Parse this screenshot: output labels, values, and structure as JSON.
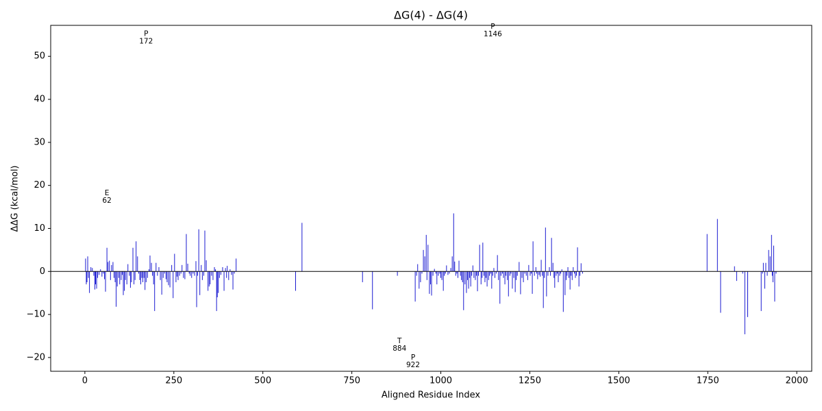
{
  "chart_data": {
    "type": "bar",
    "title": "ΔG(4) - ΔG(4)",
    "x_label": "Aligned Residue Index",
    "y_label": "ΔΔG (kcal/mol)",
    "color": "#0000cc",
    "zero_line": true,
    "grid": false,
    "xlim": [
      -96,
      2042
    ],
    "ylim": [
      -23.2,
      57.2
    ],
    "xticks": [
      0,
      250,
      500,
      750,
      1000,
      1250,
      1500,
      1750,
      2000
    ],
    "yticks": [
      {
        "value": -20,
        "label": "−20"
      },
      {
        "value": -10,
        "label": "−10"
      },
      0,
      10,
      20,
      30,
      40,
      50
    ],
    "x": [
      2,
      4,
      6,
      8,
      10,
      13,
      17,
      21,
      25,
      28,
      30,
      33,
      36,
      40,
      44,
      48,
      52,
      55,
      58,
      62,
      65,
      69,
      72,
      75,
      79,
      82,
      85,
      88,
      91,
      95,
      98,
      102,
      105,
      108,
      111,
      114,
      118,
      121,
      125,
      128,
      131,
      135,
      138,
      141,
      144,
      148,
      151,
      154,
      157,
      160,
      163,
      166,
      169,
      172,
      176,
      180,
      183,
      187,
      190,
      193,
      196,
      200,
      204,
      208,
      212,
      216,
      220,
      224,
      228,
      231,
      235,
      239,
      244,
      248,
      252,
      256,
      259,
      262,
      266,
      270,
      273,
      277,
      281,
      285,
      289,
      293,
      296,
      300,
      304,
      308,
      312,
      314,
      317,
      320,
      323,
      327,
      330,
      334,
      337,
      341,
      346,
      349,
      352,
      356,
      360,
      364,
      367,
      370,
      372,
      375,
      378,
      382,
      387,
      391,
      395,
      398,
      400,
      404,
      408,
      412,
      416,
      420,
      425,
      592,
      610,
      780,
      808,
      878,
      928,
      932,
      935,
      939,
      943,
      947,
      951,
      955,
      959,
      961,
      964,
      968,
      971,
      974,
      978,
      982,
      986,
      989,
      993,
      997,
      1000,
      1003,
      1007,
      1010,
      1013,
      1016,
      1020,
      1024,
      1028,
      1032,
      1036,
      1039,
      1042,
      1045,
      1048,
      1051,
      1055,
      1058,
      1061,
      1064,
      1068,
      1072,
      1075,
      1078,
      1081,
      1084,
      1087,
      1090,
      1093,
      1097,
      1100,
      1103,
      1106,
      1109,
      1113,
      1116,
      1118,
      1121,
      1124,
      1127,
      1130,
      1134,
      1137,
      1140,
      1143,
      1146,
      1149,
      1152,
      1156,
      1159,
      1162,
      1166,
      1169,
      1173,
      1176,
      1180,
      1183,
      1187,
      1190,
      1194,
      1197,
      1201,
      1205,
      1209,
      1212,
      1215,
      1220,
      1224,
      1228,
      1232,
      1236,
      1240,
      1244,
      1247,
      1251,
      1254,
      1257,
      1259,
      1263,
      1267,
      1269,
      1272,
      1276,
      1279,
      1282,
      1285,
      1288,
      1291,
      1294,
      1297,
      1301,
      1305,
      1308,
      1311,
      1315,
      1318,
      1320,
      1324,
      1327,
      1330,
      1334,
      1337,
      1340,
      1344,
      1349,
      1352,
      1355,
      1357,
      1360,
      1363,
      1366,
      1369,
      1372,
      1375,
      1378,
      1381,
      1384,
      1388,
      1391,
      1394,
      1398,
      1748,
      1777,
      1786,
      1825,
      1831,
      1848,
      1854,
      1862,
      1900,
      1904,
      1906,
      1910,
      1913,
      1917,
      1921,
      1925,
      1929,
      1931,
      1933,
      1935,
      1938,
      1942
    ],
    "values": [
      3,
      -3,
      -2.5,
      3.5,
      -1.5,
      -5,
      1,
      0.8,
      -1,
      -4.2,
      -3,
      -4,
      -1.5,
      -0.8,
      0.5,
      -1.2,
      -0.5,
      -1.8,
      -4.7,
      5.5,
      2.2,
      2.5,
      -2,
      1.5,
      2.2,
      -1.5,
      -2.5,
      -8.2,
      -3.5,
      -1.5,
      -3,
      -2,
      -0.8,
      -5.5,
      -4.5,
      -2,
      -3,
      1.7,
      -1,
      -3.8,
      -2.5,
      5.5,
      -3,
      -2,
      7,
      3.5,
      -0.5,
      -2,
      -3,
      -1.5,
      -2.5,
      -1.5,
      -4.3,
      -2.5,
      -1.5,
      0.5,
      3.7,
      2,
      -1,
      -3,
      -9.2,
      2,
      -1,
      1,
      -2,
      -5.4,
      -1.5,
      -0.5,
      -1.8,
      -2.5,
      -3.2,
      -3.7,
      1.5,
      -6.2,
      4.1,
      -2.5,
      -1.2,
      -2,
      -1,
      -0.5,
      1.5,
      -1.5,
      -1.8,
      8.7,
      1.8,
      -0.5,
      -1,
      -1.5,
      -0.5,
      -1,
      2.4,
      -8.3,
      -1,
      9.8,
      -5.5,
      1.5,
      -2,
      -1,
      9.5,
      2.6,
      -4.5,
      -3.5,
      -3,
      -1,
      -2,
      1,
      0.5,
      -9.2,
      -6,
      -5,
      -1.5,
      -0.8,
      1,
      -4.5,
      0.8,
      -1.5,
      1.3,
      -2,
      0.5,
      -0.8,
      -4.2,
      -0.5,
      3,
      -4.5,
      11.3,
      -2.5,
      -8.8,
      -1,
      -7,
      -1,
      1.7,
      -4,
      -2.5,
      -0.5,
      5,
      3.5,
      8.5,
      -2,
      6.2,
      -5.2,
      -3,
      -5.6,
      -1,
      0.6,
      -0.5,
      -3,
      -1,
      -0.5,
      -1.5,
      -2,
      -4.5,
      -1,
      -0.5,
      1.4,
      -0.8,
      -0.5,
      0.8,
      3.5,
      13.5,
      2.3,
      -1,
      -0.5,
      -1.5,
      2.5,
      -1,
      -2,
      -2.5,
      -9,
      -3,
      -5,
      -2,
      -4,
      -1.5,
      -3.5,
      -1,
      1.4,
      -1.5,
      -2,
      -1,
      -4.6,
      -1,
      6.2,
      -3,
      -1.5,
      6.7,
      -1,
      -2.5,
      -1.5,
      -3.5,
      -2,
      -1,
      -0.5,
      -4,
      -1,
      0.8,
      -1.5,
      -0.5,
      3.8,
      -2,
      -7.5,
      -1,
      -0.5,
      -1.5,
      -3,
      -1,
      -2,
      -5.8,
      -1,
      -0.5,
      -4,
      -1.5,
      -4.8,
      -2,
      -1,
      2.2,
      -5.3,
      -1.5,
      -2.5,
      -0.5,
      -1,
      -2,
      1.5,
      -1,
      -0.5,
      -5.2,
      7,
      -1,
      1,
      -0.5,
      -1.8,
      -0.8,
      -1.2,
      2.7,
      -1,
      -8.5,
      -1.5,
      10.2,
      -5.8,
      -1,
      1,
      -1,
      7.8,
      2,
      -1.5,
      -3.8,
      -1,
      -0.5,
      -2.5,
      -1,
      -0.5,
      0.5,
      -9.4,
      -5.5,
      -2,
      -1,
      1,
      -1.5,
      -4.2,
      -1,
      -2,
      1,
      -0.5,
      -1.5,
      -1,
      5.6,
      -3.5,
      -1,
      1.9,
      -0.5,
      8.7,
      12.2,
      -9.6,
      1.2,
      -2.2,
      -0.5,
      -14.6,
      -10.6,
      -9.2,
      -0.5,
      2,
      -4,
      2,
      -1,
      5,
      3.5,
      8.5,
      -1,
      -2.5,
      6,
      -7,
      -0.5
    ],
    "annotations": [
      {
        "x": 172,
        "y": 54.3,
        "lines": [
          "P",
          "172"
        ]
      },
      {
        "x": 1146,
        "y": 56,
        "lines": [
          "P",
          "1146"
        ]
      },
      {
        "x": 62,
        "y": 17.3,
        "lines": [
          "E",
          "62"
        ]
      },
      {
        "x": 884,
        "y": -17.1,
        "lines": [
          "T",
          "884"
        ]
      },
      {
        "x": 922,
        "y": -20.9,
        "lines": [
          "P",
          "922"
        ]
      }
    ]
  }
}
